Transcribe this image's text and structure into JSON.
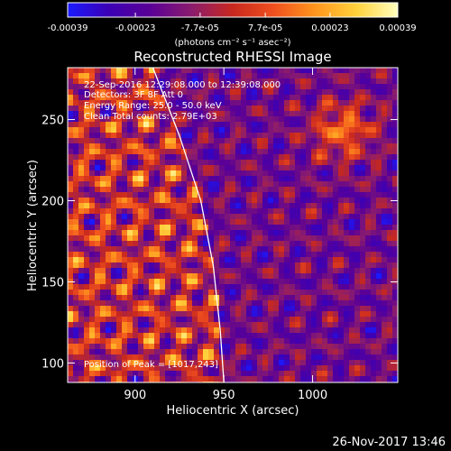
{
  "chart_data": {
    "type": "heatmap",
    "title": "Reconstructed RHESSI Image",
    "xlabel": "Heliocentric X (arcsec)",
    "ylabel": "Heliocentric Y (arcsec)",
    "xlim": [
      862,
      1048
    ],
    "ylim": [
      88,
      282
    ],
    "x_ticks": [
      900,
      950,
      1000
    ],
    "y_ticks": [
      100,
      150,
      200,
      250
    ],
    "colorbar": {
      "range": [
        -0.00039,
        0.00039
      ],
      "tick_values": [
        -0.00039,
        -0.00023,
        -7.7e-05,
        7.7e-05,
        0.00023,
        0.00039
      ],
      "tick_labels": [
        "-0.00039",
        "-0.00023",
        "-7.7e-05",
        "7.7e-05",
        "0.00023",
        "0.00039"
      ],
      "unit_label": "(photons cm⁻² s⁻¹ asec⁻²)",
      "colors": [
        "#1a1aff",
        "#3c00b4",
        "#5a0096",
        "#8a1c6e",
        "#c8281e",
        "#f0501e",
        "#ff961e",
        "#ffd23c",
        "#ffffbe"
      ]
    },
    "annotations": [
      "22-Sep-2016 12:29:08.000 to 12:39:08.000",
      "Detectors: 3F 8F  Att 0",
      "Energy Range: 25.0 - 50.0 keV",
      "Clean    Total counts: 2.79E+03",
      "Position of Peak = [1017,243]"
    ],
    "limb": [
      [
        910,
        282
      ],
      [
        925,
        240
      ],
      [
        937,
        200
      ],
      [
        944,
        160
      ],
      [
        948,
        120
      ],
      [
        950,
        88
      ]
    ],
    "peak": [
      1017,
      243
    ],
    "grid": false
  },
  "footer": {
    "timestamp": "26-Nov-2017 13:46"
  }
}
